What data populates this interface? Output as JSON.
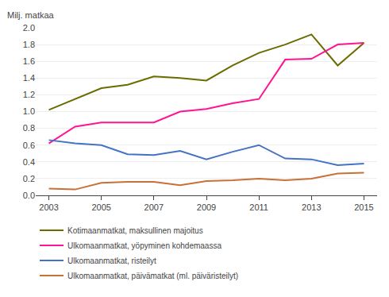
{
  "chart_data": {
    "type": "line",
    "ylabel": "Milj. matkaa",
    "x": [
      2003,
      2004,
      2005,
      2006,
      2007,
      2008,
      2009,
      2010,
      2011,
      2012,
      2013,
      2014,
      2015
    ],
    "series": [
      {
        "name": "Kotimaanmatkat, maksullinen majoitus",
        "color": "#6b6b00",
        "values": [
          1.02,
          1.15,
          1.28,
          1.32,
          1.42,
          1.4,
          1.37,
          1.55,
          1.7,
          1.8,
          1.92,
          1.55,
          1.82
        ]
      },
      {
        "name": "Ulkomaanmatkat, yöpyminen kohdemaassa",
        "color": "#ff1493",
        "values": [
          0.62,
          0.82,
          0.87,
          0.87,
          0.87,
          1.0,
          1.03,
          1.1,
          1.15,
          1.62,
          1.63,
          1.8,
          1.82
        ]
      },
      {
        "name": "Ulkomaanmatkat, risteilyt",
        "color": "#4472c4",
        "values": [
          0.66,
          0.62,
          0.6,
          0.49,
          0.48,
          0.53,
          0.43,
          0.52,
          0.6,
          0.44,
          0.43,
          0.36,
          0.38
        ]
      },
      {
        "name": "Ulkomaanmatkat, päivämatkat (ml. päiväristeilyt)",
        "color": "#c87137",
        "values": [
          0.08,
          0.07,
          0.15,
          0.16,
          0.16,
          0.12,
          0.17,
          0.18,
          0.2,
          0.18,
          0.2,
          0.26,
          0.27
        ]
      }
    ],
    "xlim": [
      2002.5,
      2015.5
    ],
    "xticks": [
      2003,
      2005,
      2007,
      2009,
      2011,
      2013,
      2015
    ],
    "ylim": [
      0.0,
      2.0
    ],
    "yticks": [
      {
        "value": 0.0,
        "label": "0.0"
      },
      0.2,
      0.4,
      0.6,
      0.8,
      {
        "value": 1.0,
        "label": "1.0"
      },
      1.2,
      1.4,
      1.6,
      1.8,
      {
        "value": 2.0,
        "label": "2.0"
      }
    ],
    "grid": "y",
    "legend": "bottom"
  }
}
